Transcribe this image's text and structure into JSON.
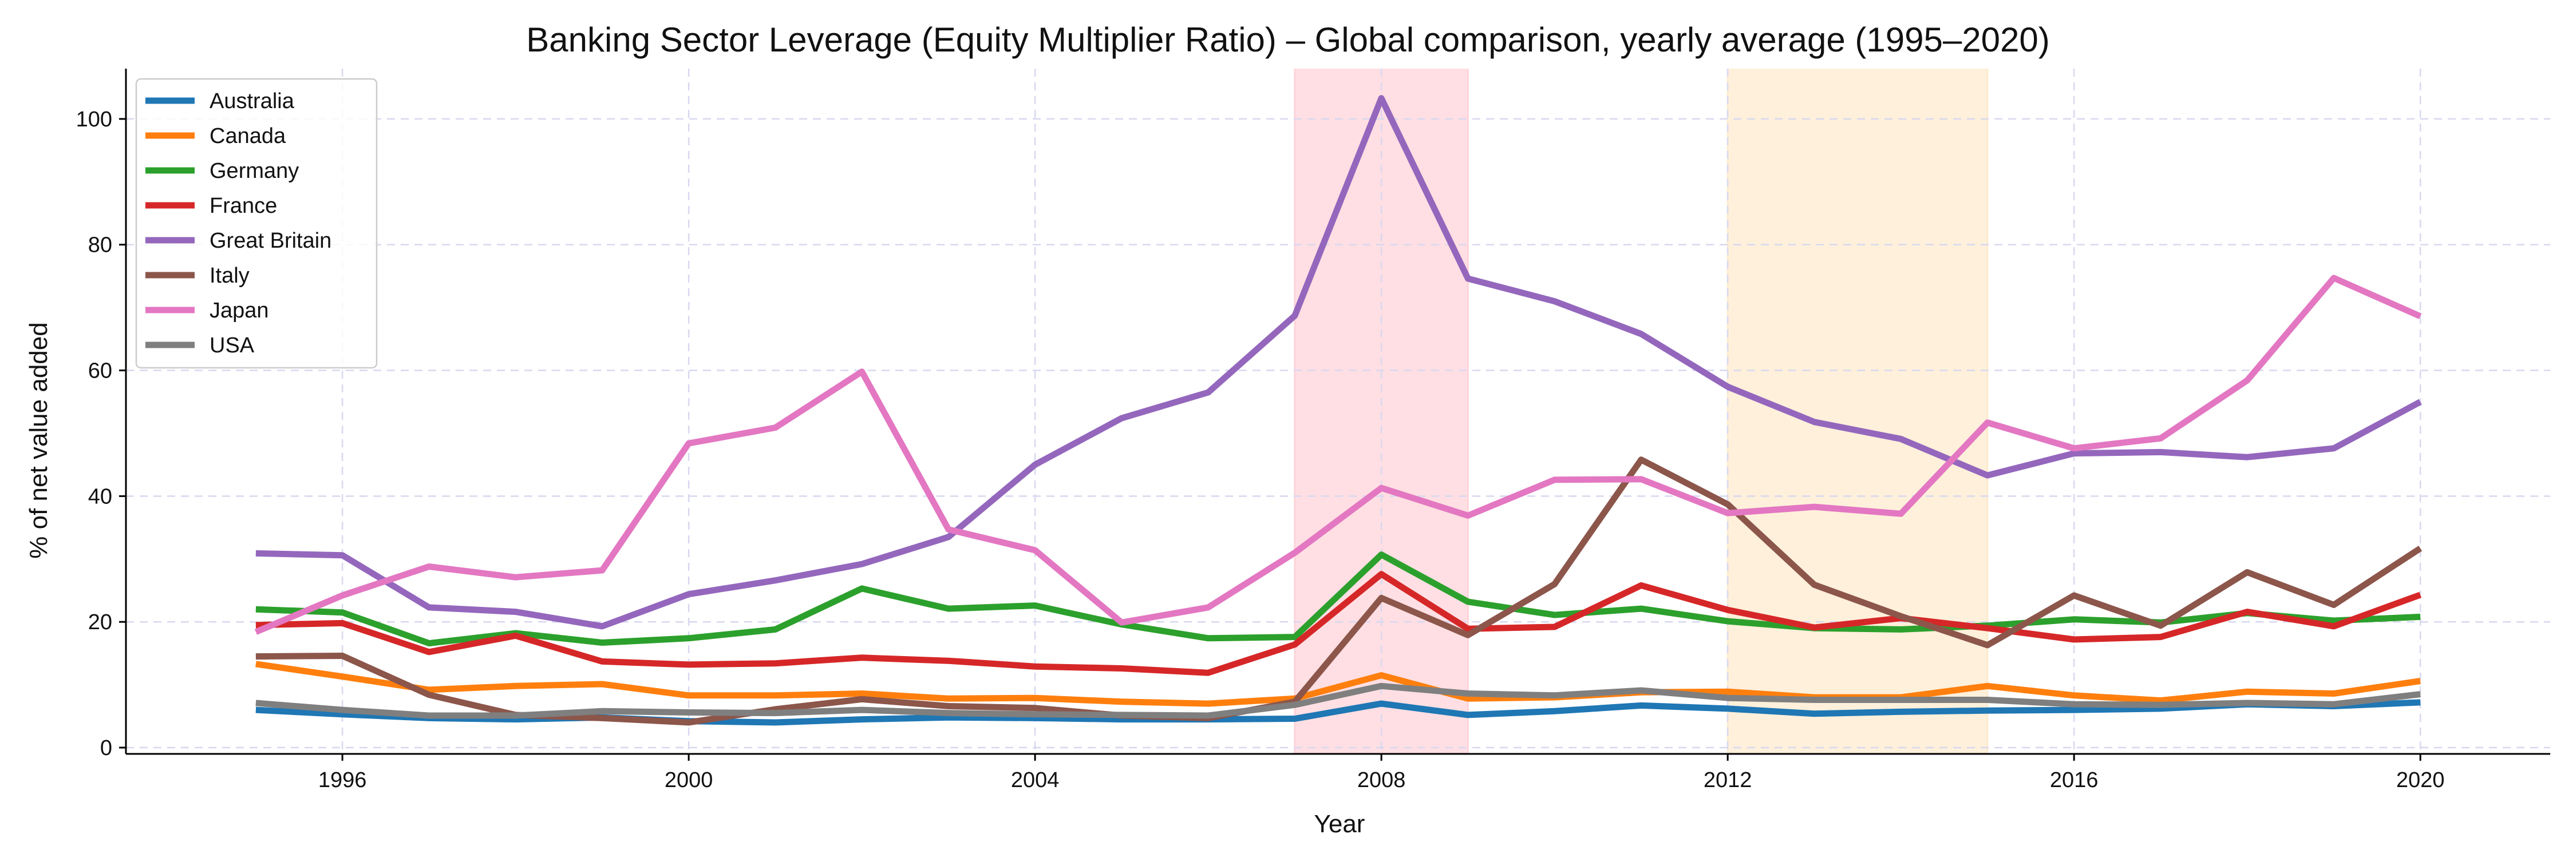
{
  "chart_data": {
    "type": "line",
    "title": "Banking Sector Leverage (Equity Multiplier Ratio) – Global comparison, yearly average (1995–2020)",
    "xlabel": "Year",
    "ylabel": "% of net value added",
    "xlim": [
      1993.5,
      2021.5
    ],
    "ylim": [
      -1,
      108
    ],
    "x_ticks": [
      1996,
      2000,
      2004,
      2008,
      2012,
      2016,
      2020
    ],
    "y_ticks": [
      0,
      20,
      40,
      60,
      80,
      100
    ],
    "grid": true,
    "legend_position": "top-left",
    "shaded_regions": [
      {
        "x": [
          2007,
          2009
        ],
        "color": "#ffd4da"
      },
      {
        "x": [
          2012,
          2015
        ],
        "color": "#fdebcf"
      }
    ],
    "x": [
      1995,
      1996,
      1997,
      1998,
      1999,
      2000,
      2001,
      2002,
      2003,
      2004,
      2005,
      2006,
      2007,
      2008,
      2009,
      2010,
      2011,
      2012,
      2013,
      2014,
      2015,
      2016,
      2017,
      2018,
      2019,
      2020
    ],
    "series": [
      {
        "name": "Australia",
        "color": "#1f77b4",
        "values": [
          6.0,
          5.3,
          4.7,
          4.5,
          4.8,
          4.2,
          4.0,
          4.5,
          4.8,
          4.7,
          4.5,
          4.5,
          4.6,
          7.0,
          5.2,
          5.8,
          6.7,
          6.2,
          5.4,
          5.7,
          5.9,
          6.0,
          6.2,
          6.9,
          6.6,
          7.2
        ]
      },
      {
        "name": "Canada",
        "color": "#ff7f0e",
        "values": [
          13.3,
          11.3,
          9.2,
          9.8,
          10.1,
          8.3,
          8.3,
          8.6,
          7.8,
          7.9,
          7.3,
          7.0,
          7.8,
          11.5,
          7.8,
          8.0,
          8.8,
          8.9,
          8.0,
          8.0,
          9.8,
          8.3,
          7.5,
          8.9,
          8.6,
          10.6
        ]
      },
      {
        "name": "Germany",
        "color": "#2ca02c",
        "values": [
          22.0,
          21.5,
          16.6,
          18.2,
          16.7,
          17.4,
          18.8,
          25.3,
          22.1,
          22.6,
          19.6,
          17.4,
          17.6,
          30.7,
          23.2,
          21.1,
          22.1,
          20.1,
          19.0,
          18.8,
          19.4,
          20.4,
          19.9,
          21.4,
          20.2,
          20.8
        ]
      },
      {
        "name": "France",
        "color": "#d62728",
        "values": [
          19.5,
          19.8,
          15.2,
          17.8,
          13.7,
          13.2,
          13.4,
          14.3,
          13.8,
          12.9,
          12.6,
          11.9,
          16.4,
          27.6,
          18.9,
          19.2,
          25.8,
          21.9,
          19.1,
          20.6,
          19.0,
          17.2,
          17.6,
          21.6,
          19.3,
          24.3
        ]
      },
      {
        "name": "Great Britain",
        "color": "#9467bd",
        "values": [
          30.9,
          30.6,
          22.3,
          21.6,
          19.3,
          24.4,
          26.6,
          29.2,
          33.5,
          45.0,
          52.4,
          56.5,
          68.7,
          103.3,
          74.6,
          71.0,
          65.8,
          57.4,
          51.8,
          49.1,
          43.3,
          46.8,
          47.0,
          46.2,
          47.6,
          55.0
        ]
      },
      {
        "name": "Italy",
        "color": "#8c564b",
        "values": [
          14.5,
          14.6,
          8.4,
          5.2,
          4.7,
          4.0,
          6.1,
          7.7,
          6.6,
          6.3,
          5.1,
          4.7,
          7.3,
          23.8,
          17.9,
          26.0,
          45.8,
          38.7,
          25.9,
          20.9,
          16.3,
          24.2,
          19.4,
          27.9,
          22.7,
          31.7
        ]
      },
      {
        "name": "Japan",
        "color": "#e377c2",
        "values": [
          18.4,
          24.2,
          28.8,
          27.1,
          28.2,
          48.4,
          50.9,
          59.8,
          34.7,
          31.4,
          19.9,
          22.3,
          31.0,
          41.3,
          36.9,
          42.6,
          42.7,
          37.3,
          38.3,
          37.2,
          51.7,
          47.6,
          49.2,
          58.4,
          74.7,
          68.6
        ]
      },
      {
        "name": "USA",
        "color": "#7f7f7f",
        "values": [
          7.1,
          6.0,
          5.1,
          5.1,
          5.8,
          5.6,
          5.5,
          6.0,
          5.5,
          5.3,
          5.2,
          5.1,
          6.8,
          9.8,
          8.6,
          8.3,
          9.1,
          7.9,
          7.6,
          7.6,
          7.6,
          6.9,
          6.8,
          7.1,
          6.9,
          8.5
        ]
      }
    ]
  }
}
